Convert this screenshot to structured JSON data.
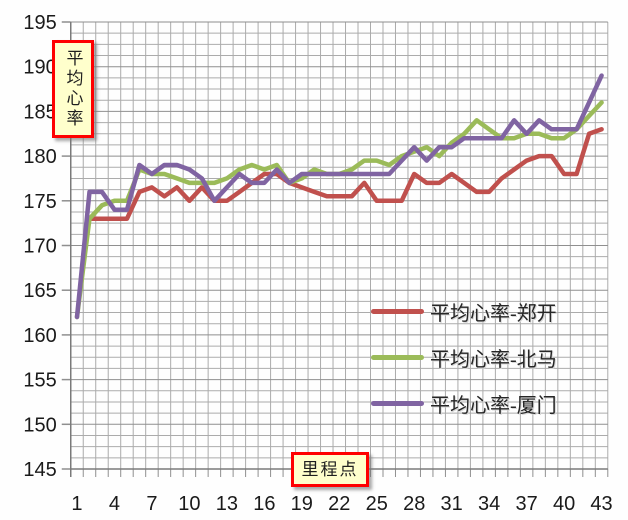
{
  "chart_data": {
    "type": "line",
    "title": "",
    "xlabel": "里程点",
    "ylabel": "平均心率",
    "x": [
      1,
      2,
      3,
      4,
      5,
      6,
      7,
      8,
      9,
      10,
      11,
      12,
      13,
      14,
      15,
      16,
      17,
      18,
      19,
      20,
      21,
      22,
      23,
      24,
      25,
      26,
      27,
      28,
      29,
      30,
      31,
      32,
      33,
      34,
      35,
      36,
      37,
      38,
      39,
      40,
      41,
      42,
      43
    ],
    "x_tick_labels": [
      1,
      4,
      7,
      10,
      13,
      16,
      19,
      22,
      25,
      28,
      31,
      34,
      37,
      40,
      43
    ],
    "ylim": [
      145,
      195
    ],
    "y_major_step": 5,
    "y_minor_step": 1.25,
    "grid": true,
    "legend_position": "center-right",
    "series": [
      {
        "name": "平均心率-郑开",
        "color": "#c0504d",
        "values": [
          null,
          173,
          173,
          173,
          173,
          176,
          176.5,
          175.5,
          176.5,
          175,
          176.5,
          175,
          175,
          176,
          177,
          178,
          178,
          177,
          176.5,
          176,
          175.5,
          175.5,
          175.5,
          177,
          175,
          175,
          175,
          178,
          177,
          177,
          178,
          177,
          176,
          176,
          177.5,
          178.5,
          179.5,
          180,
          180,
          178,
          178,
          182.5,
          183
        ]
      },
      {
        "name": "平均心率-北马",
        "color": "#9bbb59",
        "values": [
          162,
          173,
          174.5,
          175,
          175,
          178.5,
          178,
          178,
          177.5,
          177,
          177,
          177,
          177.5,
          178.5,
          179,
          178.5,
          179,
          177,
          177.5,
          178.5,
          178,
          178,
          178.5,
          179.5,
          179.5,
          179,
          180,
          180.5,
          181,
          180,
          181.5,
          182.5,
          184,
          183,
          182,
          182,
          182.5,
          182.5,
          182,
          182,
          183,
          184.5,
          186
        ]
      },
      {
        "name": "平均心率-厦门",
        "color": "#8064a2",
        "values": [
          162,
          176,
          176,
          174,
          174,
          179,
          178,
          179,
          179,
          178.5,
          177.5,
          175,
          176.5,
          178,
          177,
          177,
          178.5,
          177,
          178,
          178,
          178,
          178,
          178,
          178,
          178,
          178,
          179.5,
          181,
          179.5,
          181,
          181,
          182,
          182,
          182,
          182,
          184,
          182.5,
          184,
          183,
          183,
          183,
          186,
          189
        ]
      }
    ]
  },
  "axis_boxes": {
    "y_label": "平均心率",
    "x_label": "里程点"
  },
  "y_tick_labels": [
    "145",
    "150",
    "155",
    "160",
    "165",
    "170",
    "175",
    "180",
    "185",
    "190",
    "195"
  ],
  "grid_colors": {
    "minor": "#ababab",
    "major": "#8f8f8f",
    "axis": "#7a7a7a"
  }
}
